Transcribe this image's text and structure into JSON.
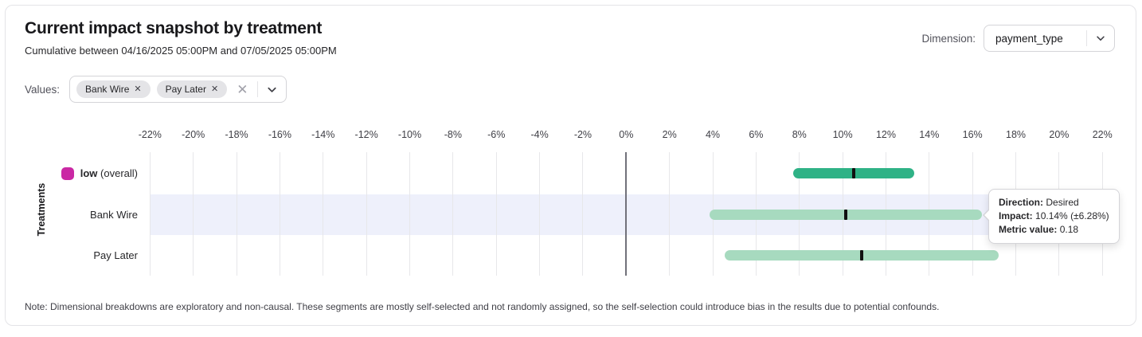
{
  "header": {
    "title": "Current impact snapshot by treatment",
    "subtitle": "Cumulative between 04/16/2025 05:00PM and 07/05/2025 05:00PM",
    "dimension_label": "Dimension:",
    "dimension_value": "payment_type"
  },
  "filters": {
    "values_label": "Values:",
    "chips": [
      {
        "label": "Bank Wire"
      },
      {
        "label": "Pay Later"
      }
    ]
  },
  "icons": {
    "chip_remove_glyph": "✕",
    "clear_glyph": "✕"
  },
  "chart_data": {
    "type": "bar",
    "subtype": "horizontal-confidence-intervals",
    "ylabel": "Treatments",
    "x_tick_labels": [
      "-22%",
      "-20%",
      "-18%",
      "-16%",
      "-14%",
      "-12%",
      "-10%",
      "-8%",
      "-6%",
      "-4%",
      "-2%",
      "0%",
      "2%",
      "4%",
      "6%",
      "8%",
      "10%",
      "12%",
      "14%",
      "16%",
      "18%",
      "20%",
      "22%"
    ],
    "xlim_pct": [
      -23,
      23.5
    ],
    "grid": true,
    "colors": {
      "overall_bar": "#2fb286",
      "segment_bar": "#a7dabf",
      "point_tick": "#111111",
      "overall_swatch": "#ca28a4",
      "row_highlight": "#eef0fb"
    },
    "rows": [
      {
        "label_bold": "low",
        "label_rest": " (overall)",
        "impact_pct": 10.5,
        "moe_pct": 2.8,
        "kind": "overall",
        "has_swatch": true,
        "highlighted": false
      },
      {
        "label_bold": "",
        "label_rest": "Bank Wire",
        "impact_pct": 10.14,
        "moe_pct": 6.28,
        "kind": "segment",
        "has_swatch": false,
        "highlighted": true
      },
      {
        "label_bold": "",
        "label_rest": "Pay Later",
        "impact_pct": 10.88,
        "moe_pct": 6.33,
        "kind": "segment",
        "has_swatch": false,
        "highlighted": false
      }
    ]
  },
  "tooltip": {
    "rows": [
      {
        "label": "Direction:",
        "value": "Desired"
      },
      {
        "label": "Impact:",
        "value": "10.14% (±6.28%)"
      },
      {
        "label": "Metric value:",
        "value": "0.18"
      }
    ]
  },
  "note": "Note: Dimensional breakdowns are exploratory and non-causal. These segments are mostly self-selected and not randomly assigned, so the self-selection could introduce bias in the results due to potential confounds."
}
